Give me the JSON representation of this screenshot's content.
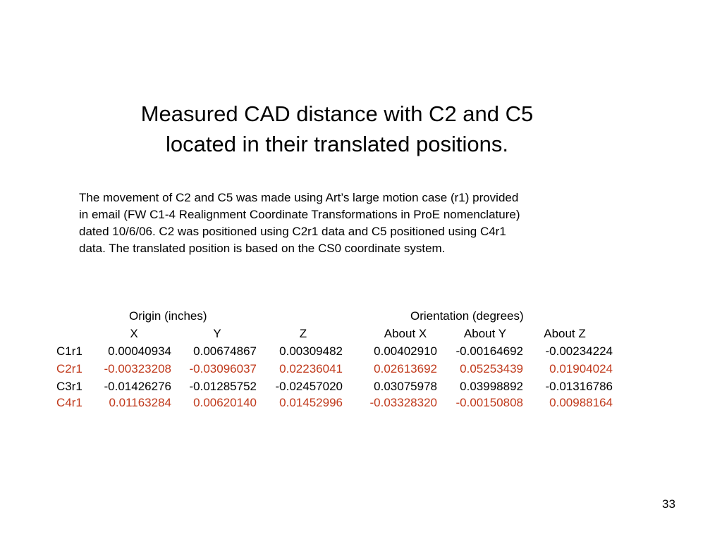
{
  "title": {
    "line1": "Measured CAD distance with C2 and C5",
    "line2": "located in their translated positions."
  },
  "description": {
    "line1": "The movement of C2 and C5 was made using Art’s large motion case (r1) provided",
    "line2": "in email (FW C1-4 Realignment Coordinate Transformations in ProE nomenclature)",
    "line3": "dated 10/6/06.  C2 was positioned using C2r1 data and C5 positioned using C4r1",
    "line4": "data.  The translated position is based on the CS0 coordinate system."
  },
  "table": {
    "group_headers": {
      "origin": "Origin (inches)",
      "orientation": "Orientation  (degrees)"
    },
    "columns": [
      "X",
      "Y",
      "Z",
      "About X",
      "About Y",
      "About Z"
    ],
    "rows": [
      {
        "label": "C1r1",
        "color": "#000000",
        "values": [
          "0.00040934",
          "0.00674867",
          "0.00309482",
          "0.00402910",
          "-0.00164692",
          "-0.00234224"
        ]
      },
      {
        "label": "C2r1",
        "color": "#C0391B",
        "values": [
          "-0.00323208",
          "-0.03096037",
          "0.02236041",
          "0.02613692",
          "0.05253439",
          "0.01904024"
        ]
      },
      {
        "label": "C3r1",
        "color": "#000000",
        "values": [
          "-0.01426276",
          "-0.01285752",
          "-0.02457020",
          "0.03075978",
          "0.03998892",
          "-0.01316786"
        ]
      },
      {
        "label": "C4r1",
        "color": "#C0391B",
        "values": [
          "0.01163284",
          "0.00620140",
          "0.01452996",
          "-0.03328320",
          "-0.00150808",
          "0.00988164"
        ]
      }
    ]
  },
  "slide_number": "33"
}
